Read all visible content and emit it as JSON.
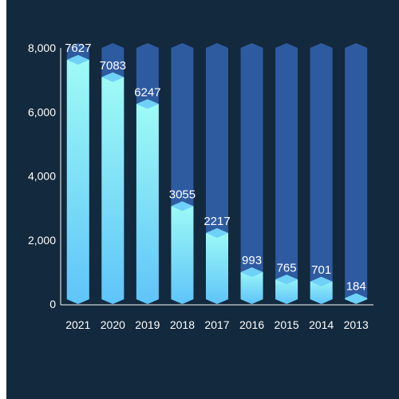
{
  "chart_data": {
    "type": "bar",
    "categories": [
      "2021",
      "2020",
      "2019",
      "2018",
      "2017",
      "2016",
      "2015",
      "2014",
      "2013"
    ],
    "values": [
      7627,
      7083,
      6247,
      3055,
      2217,
      993,
      765,
      701,
      184
    ],
    "ylim": [
      0,
      8000
    ],
    "yticks": [
      "0",
      "2,000",
      "4,000",
      "6,000",
      "8,000"
    ],
    "ytick_values": [
      0,
      2000,
      4000,
      6000,
      8000
    ],
    "title": "",
    "xlabel": "",
    "ylabel": "",
    "grid": false,
    "colors": {
      "background": "#13293d",
      "track": "#2e5aa0",
      "bar_top": "#9ffcf6",
      "bar_bottom": "#5fc4f8",
      "cap": "#6fd1f8",
      "axis": "#ffffff",
      "text": "#ffffff"
    }
  }
}
